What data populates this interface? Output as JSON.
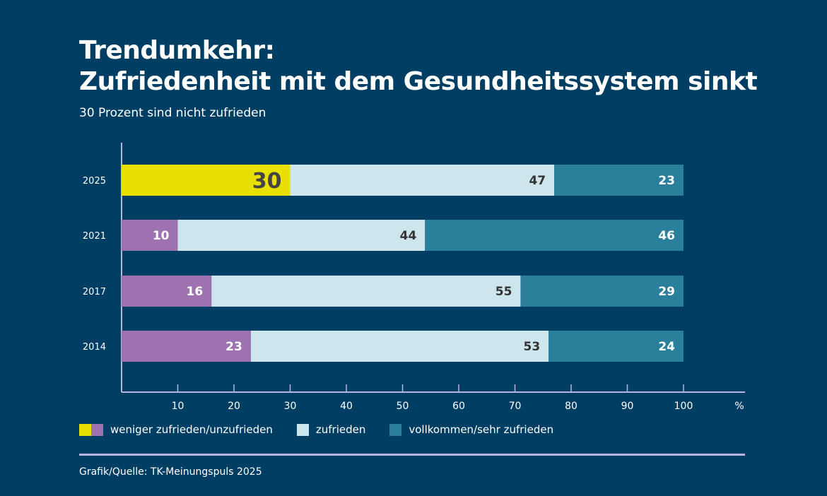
{
  "title_line1": "Trendumkehr:",
  "title_line2": "Zufriedenheit mit dem Gesundheitssystem sinkt",
  "subtitle": "30 Prozent sind nicht zufrieden",
  "source": "Grafik/Quelle: TK-Meinungspuls 2025",
  "colors": {
    "background": "#003f63",
    "highlight": "#e8e000",
    "unzufrieden": "#9e72b0",
    "zufrieden": "#cde6ee",
    "sehr_zufrieden": "#2a7f9a",
    "axis": "#b9b3e0"
  },
  "chart_data": {
    "type": "bar",
    "orientation": "horizontal-stacked",
    "categories": [
      "2025",
      "2021",
      "2017",
      "2014"
    ],
    "series": [
      {
        "name": "weniger zufrieden/unzufrieden",
        "values": [
          30,
          10,
          16,
          23
        ]
      },
      {
        "name": "zufrieden",
        "values": [
          47,
          44,
          55,
          53
        ]
      },
      {
        "name": "vollkommen/sehr zufrieden",
        "values": [
          23,
          46,
          29,
          24
        ]
      }
    ],
    "xlim": [
      0,
      100
    ],
    "xticks": [
      10,
      20,
      30,
      40,
      50,
      60,
      70,
      80,
      90,
      100
    ],
    "xunit": "%",
    "grid": false,
    "legend": "bottom"
  },
  "legend": [
    "weniger zufrieden/unzufrieden",
    "zufrieden",
    "vollkommen/sehr zufrieden"
  ]
}
